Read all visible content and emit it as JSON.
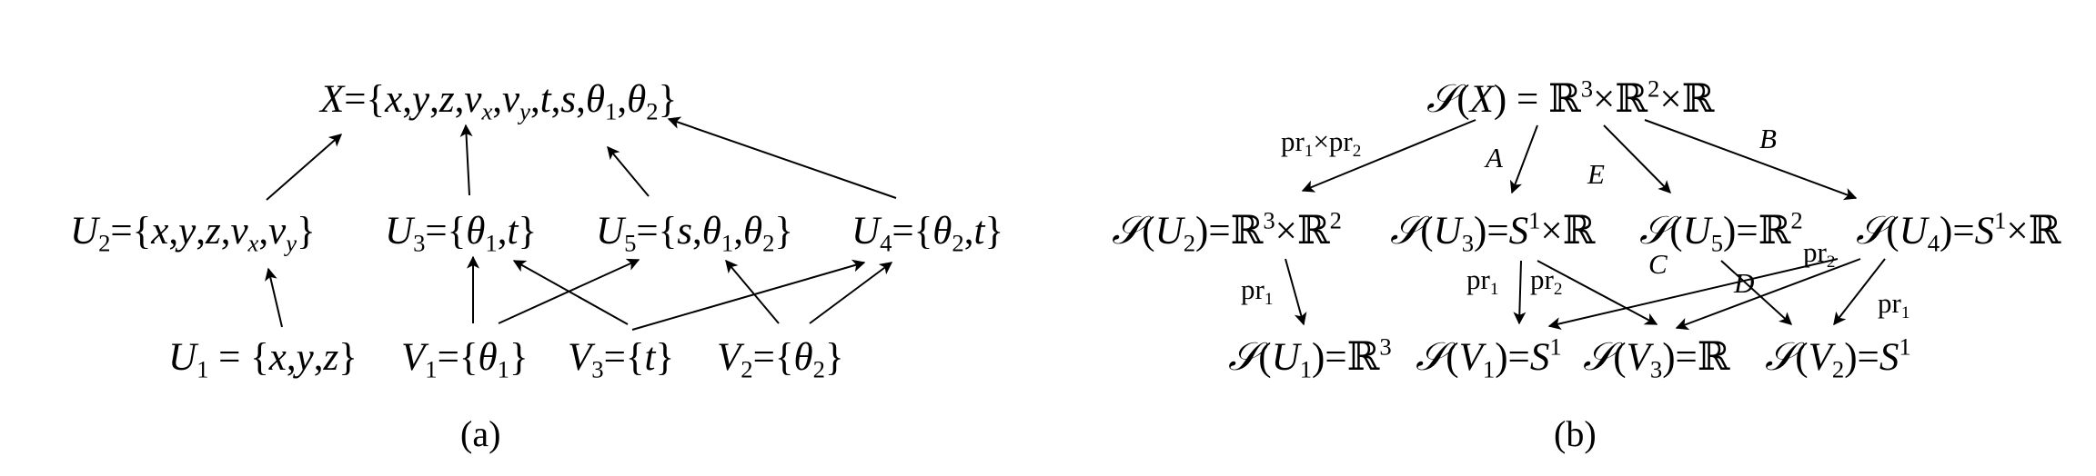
{
  "panel_a": {
    "caption": "(a)",
    "nodes": {
      "X": "X={x,y,z,vx,vy,t,s,θ1,θ2}",
      "U2": "U2={x,y,z,vx,vy}",
      "U3": "U3={θ1,t}",
      "U5": "U5={s,θ1,θ2}",
      "U4": "U4={θ2,t}",
      "U1": "U1 = {x,y,z}",
      "V1": "V1={θ1}",
      "V3": "V3={t}",
      "V2": "V2={θ2}"
    }
  },
  "panel_b": {
    "caption": "(b)",
    "nodes": {
      "SX": "𝒮(X) = ℝ3×ℝ2×ℝ",
      "SU2": "𝒮(U2)=ℝ3×ℝ2",
      "SU3": "𝒮(U3)=S1×ℝ",
      "SU5": "𝒮(U5)=ℝ2",
      "SU4": "𝒮(U4)=S1×ℝ",
      "SU1": "𝒮(U1)=ℝ3",
      "SV1": "𝒮(V1)=S1",
      "SV3": "𝒮(V3)=ℝ",
      "SV2": "𝒮(V2)=S1"
    },
    "edge_labels": {
      "pr1xpr2": "pr1×pr2",
      "A": "A",
      "E": "E",
      "B": "B",
      "C": "C",
      "D": "D",
      "pr1_left": "pr1",
      "pr1_mid": "pr1",
      "pr2_mid": "pr2",
      "pr2_right": "pr2",
      "pr1_right": "pr1"
    }
  }
}
